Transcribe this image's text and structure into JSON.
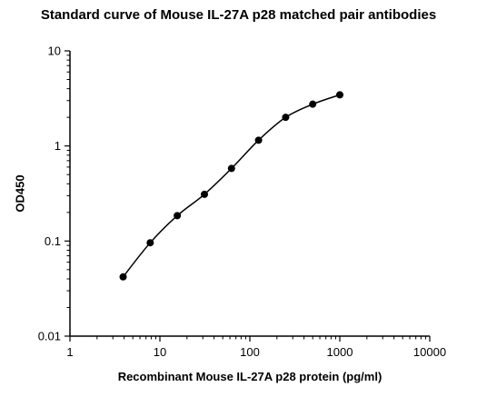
{
  "chart_data": {
    "type": "scatter",
    "title": "Standard curve of Mouse IL-27A p28 matched pair antibodies",
    "xlabel": "Recombinant Mouse IL-27A p28 protein (pg/ml)",
    "ylabel": "OD450",
    "x_scale": "log",
    "y_scale": "log",
    "xlim": [
      1,
      10000
    ],
    "ylim": [
      0.01,
      10
    ],
    "x_ticks": [
      "1",
      "10",
      "100",
      "1000",
      "10000"
    ],
    "y_ticks": [
      "0.01",
      "0.1",
      "1",
      "10"
    ],
    "grid": false,
    "fit_line": true,
    "series": [
      {
        "x": [
          3.9,
          7.8,
          15.6,
          31.25,
          62.5,
          125,
          250,
          500,
          1000
        ],
        "y": [
          0.042,
          0.096,
          0.185,
          0.31,
          0.58,
          1.15,
          2.0,
          2.75,
          3.45
        ]
      }
    ],
    "colors": {
      "marker": "#000000",
      "line": "#000000",
      "axis": "#000000"
    }
  }
}
